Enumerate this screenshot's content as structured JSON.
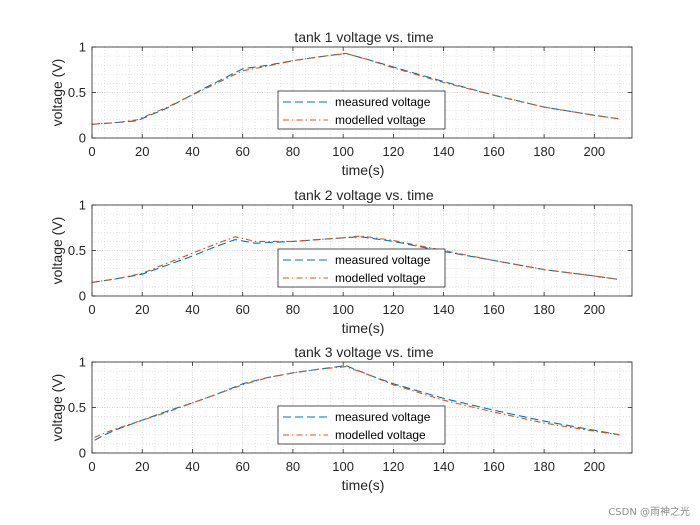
{
  "chart_data": [
    {
      "type": "line",
      "title": "tank 1 voltage vs. time",
      "xlabel": "time(s)",
      "ylabel": "voltage (V)",
      "xlim": [
        0,
        215
      ],
      "ylim": [
        0,
        1
      ],
      "xticks": [
        0,
        20,
        40,
        60,
        80,
        100,
        120,
        140,
        160,
        180,
        200
      ],
      "yticks": [
        0,
        0.5,
        1
      ],
      "grid": "on",
      "legend_position": "center-bottom",
      "series": [
        {
          "name": "measured voltage",
          "color": "#0072BD",
          "style": "dashed",
          "x": [
            0,
            10,
            18,
            30,
            45,
            60,
            70,
            80,
            90,
            101,
            110,
            120,
            140,
            160,
            180,
            200,
            210
          ],
          "y": [
            0.15,
            0.17,
            0.19,
            0.33,
            0.55,
            0.76,
            0.8,
            0.85,
            0.89,
            0.93,
            0.86,
            0.78,
            0.62,
            0.47,
            0.34,
            0.25,
            0.21
          ]
        },
        {
          "name": "modelled voltage",
          "color": "#D95319",
          "style": "dashdot",
          "x": [
            0,
            10,
            18,
            30,
            45,
            60,
            70,
            80,
            90,
            101,
            110,
            120,
            140,
            160,
            180,
            200,
            210
          ],
          "y": [
            0.15,
            0.17,
            0.2,
            0.34,
            0.54,
            0.74,
            0.79,
            0.85,
            0.89,
            0.93,
            0.86,
            0.77,
            0.61,
            0.47,
            0.34,
            0.25,
            0.21
          ]
        }
      ]
    },
    {
      "type": "line",
      "title": "tank 2 voltage vs. time",
      "xlabel": "time(s)",
      "ylabel": "voltage (V)",
      "xlim": [
        0,
        215
      ],
      "ylim": [
        0,
        1
      ],
      "xticks": [
        0,
        20,
        40,
        60,
        80,
        100,
        120,
        140,
        160,
        180,
        200
      ],
      "yticks": [
        0,
        0.5,
        1
      ],
      "grid": "on",
      "legend_position": "center-bottom",
      "series": [
        {
          "name": "measured voltage",
          "color": "#0072BD",
          "style": "dashed",
          "x": [
            0,
            10,
            20,
            30,
            40,
            50,
            57,
            65,
            80,
            100,
            107,
            120,
            140,
            160,
            180,
            200,
            210
          ],
          "y": [
            0.15,
            0.19,
            0.24,
            0.34,
            0.44,
            0.55,
            0.62,
            0.58,
            0.6,
            0.64,
            0.65,
            0.6,
            0.49,
            0.39,
            0.29,
            0.22,
            0.18
          ]
        },
        {
          "name": "modelled voltage",
          "color": "#D95319",
          "style": "dashdot",
          "x": [
            0,
            10,
            20,
            30,
            40,
            50,
            57,
            65,
            80,
            100,
            107,
            120,
            140,
            160,
            180,
            200,
            210
          ],
          "y": [
            0.15,
            0.19,
            0.25,
            0.36,
            0.47,
            0.58,
            0.65,
            0.6,
            0.6,
            0.64,
            0.66,
            0.61,
            0.5,
            0.39,
            0.29,
            0.22,
            0.18
          ]
        }
      ]
    },
    {
      "type": "line",
      "title": "tank 3 voltage vs. time",
      "xlabel": "time(s)",
      "ylabel": "voltage (V)",
      "xlim": [
        0,
        215
      ],
      "ylim": [
        0,
        1
      ],
      "xticks": [
        0,
        20,
        40,
        60,
        80,
        100,
        120,
        140,
        160,
        180,
        200
      ],
      "yticks": [
        0,
        0.5,
        1
      ],
      "grid": "on",
      "legend_position": "center-bottom",
      "series": [
        {
          "name": "measured voltage",
          "color": "#0072BD",
          "style": "dashed",
          "x": [
            1,
            5,
            10,
            20,
            30,
            40,
            50,
            60,
            70,
            80,
            90,
            101,
            110,
            120,
            140,
            160,
            180,
            200,
            210
          ],
          "y": [
            0.14,
            0.2,
            0.26,
            0.36,
            0.46,
            0.55,
            0.65,
            0.76,
            0.83,
            0.88,
            0.92,
            0.96,
            0.86,
            0.76,
            0.6,
            0.47,
            0.35,
            0.25,
            0.2
          ]
        },
        {
          "name": "modelled voltage",
          "color": "#D95319",
          "style": "dashdot",
          "x": [
            1,
            5,
            10,
            20,
            30,
            40,
            50,
            60,
            70,
            80,
            90,
            101,
            110,
            120,
            140,
            160,
            180,
            200,
            210
          ],
          "y": [
            0.17,
            0.22,
            0.27,
            0.36,
            0.45,
            0.55,
            0.65,
            0.75,
            0.83,
            0.88,
            0.92,
            0.95,
            0.86,
            0.75,
            0.58,
            0.45,
            0.33,
            0.24,
            0.2
          ]
        }
      ]
    }
  ],
  "watermark": "CSDN @雨神之光"
}
